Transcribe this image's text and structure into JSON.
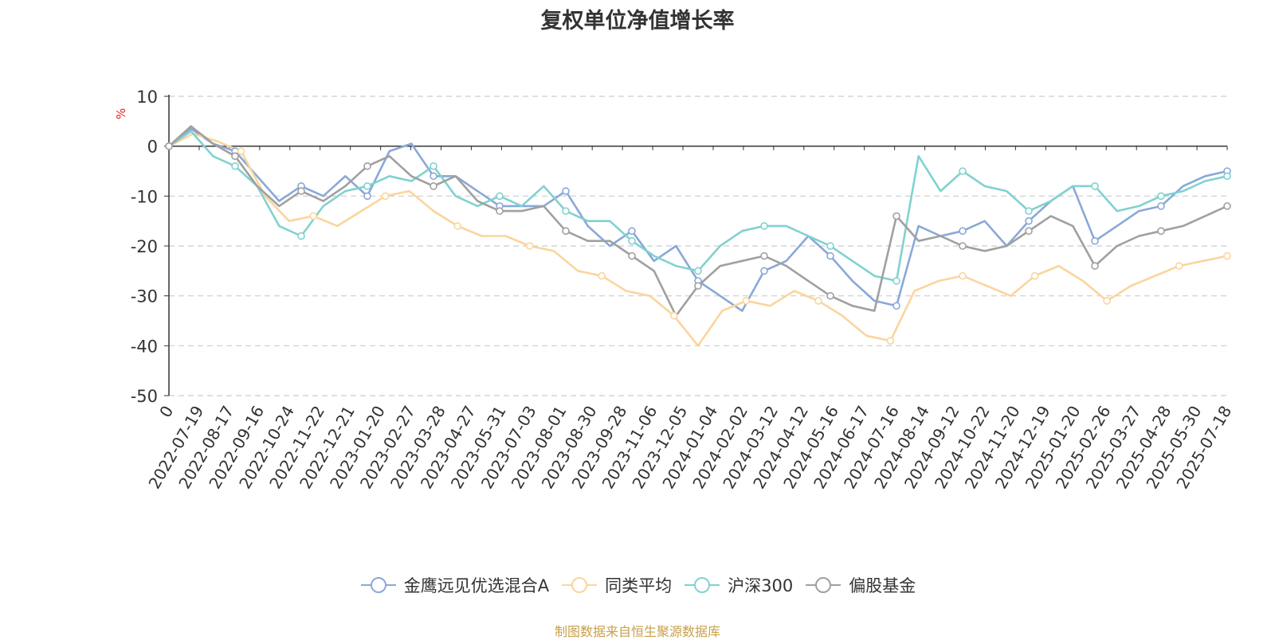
{
  "title": "复权单位净值增长率",
  "unit_label": "%",
  "source_text": "制图数据来自恒生聚源数据库",
  "chart_data": {
    "type": "line",
    "ylim": [
      -50,
      10
    ],
    "yticks": [
      "10",
      "0",
      "-10",
      "-20",
      "-30",
      "-40",
      "-50"
    ],
    "grid": true,
    "legend_position": "bottom-center",
    "xticks": [
      "0",
      "2022-07-19",
      "2022-08-17",
      "2022-09-16",
      "2022-10-24",
      "2022-11-22",
      "2022-12-21",
      "2023-01-20",
      "2023-02-27",
      "2023-03-28",
      "2023-04-27",
      "2023-05-31",
      "2023-07-03",
      "2023-08-01",
      "2023-08-30",
      "2023-09-28",
      "2023-11-06",
      "2023-12-05",
      "2024-01-04",
      "2024-02-02",
      "2024-03-12",
      "2024-04-12",
      "2024-05-16",
      "2024-06-17",
      "2024-07-16",
      "2024-08-14",
      "2024-09-12",
      "2024-10-22",
      "2024-11-20",
      "2024-12-19",
      "2025-01-20",
      "2025-02-26",
      "2025-03-27",
      "2025-04-28",
      "2025-05-30",
      "2025-07-18"
    ],
    "series": [
      {
        "name": "金鹰远见优选混合A",
        "color": "#8aa8d8",
        "values": [
          0,
          3.5,
          0.5,
          -1,
          -6,
          -11,
          -8,
          -10,
          -6,
          -10,
          -1,
          0.5,
          -6,
          -6,
          -9,
          -12,
          -12,
          -12,
          -9,
          -16,
          -20,
          -17,
          -23,
          -20,
          -27,
          -30,
          -33,
          -25,
          -23,
          -18,
          -22,
          -27,
          -31,
          -32,
          -16,
          -18,
          -17,
          -15,
          -20,
          -15,
          -11,
          -8,
          -19,
          -16,
          -13,
          -12,
          -8,
          -6,
          -5
        ]
      },
      {
        "name": "同类平均",
        "color": "#fad59d",
        "values": [
          0,
          2.5,
          1,
          -1,
          -10,
          -15,
          -14,
          -16,
          -13,
          -10,
          -9,
          -13,
          -16,
          -18,
          -18,
          -20,
          -21,
          -25,
          -26,
          -29,
          -30,
          -34,
          -40,
          -33,
          -31,
          -32,
          -29,
          -31,
          -34,
          -38,
          -39,
          -29,
          -27,
          -26,
          -28,
          -30,
          -26,
          -24,
          -27,
          -31,
          -28,
          -26,
          -24,
          -23,
          -22
        ]
      },
      {
        "name": "沪深300",
        "color": "#80d2d0",
        "values": [
          0,
          3,
          -2,
          -4,
          -8,
          -16,
          -18,
          -12,
          -9,
          -8,
          -6,
          -7,
          -4,
          -10,
          -12,
          -10,
          -12,
          -8,
          -13,
          -15,
          -15,
          -19,
          -22,
          -24,
          -25,
          -20,
          -17,
          -16,
          -16,
          -18,
          -20,
          -23,
          -26,
          -27,
          -2,
          -9,
          -5,
          -8,
          -9,
          -13,
          -11,
          -8,
          -8,
          -13,
          -12,
          -10,
          -9,
          -7,
          -6
        ]
      },
      {
        "name": "偏股基金",
        "color": "#a0a0a0",
        "values": [
          0,
          4,
          0.5,
          -2,
          -8,
          -12,
          -9,
          -11,
          -8,
          -4,
          -2,
          -6,
          -8,
          -6,
          -11,
          -13,
          -13,
          -12,
          -17,
          -19,
          -19,
          -22,
          -25,
          -34,
          -28,
          -24,
          -23,
          -22,
          -24,
          -27,
          -30,
          -32,
          -33,
          -14,
          -19,
          -18,
          -20,
          -21,
          -20,
          -17,
          -14,
          -16,
          -24,
          -20,
          -18,
          -17,
          -16,
          -14,
          -12
        ]
      }
    ]
  }
}
